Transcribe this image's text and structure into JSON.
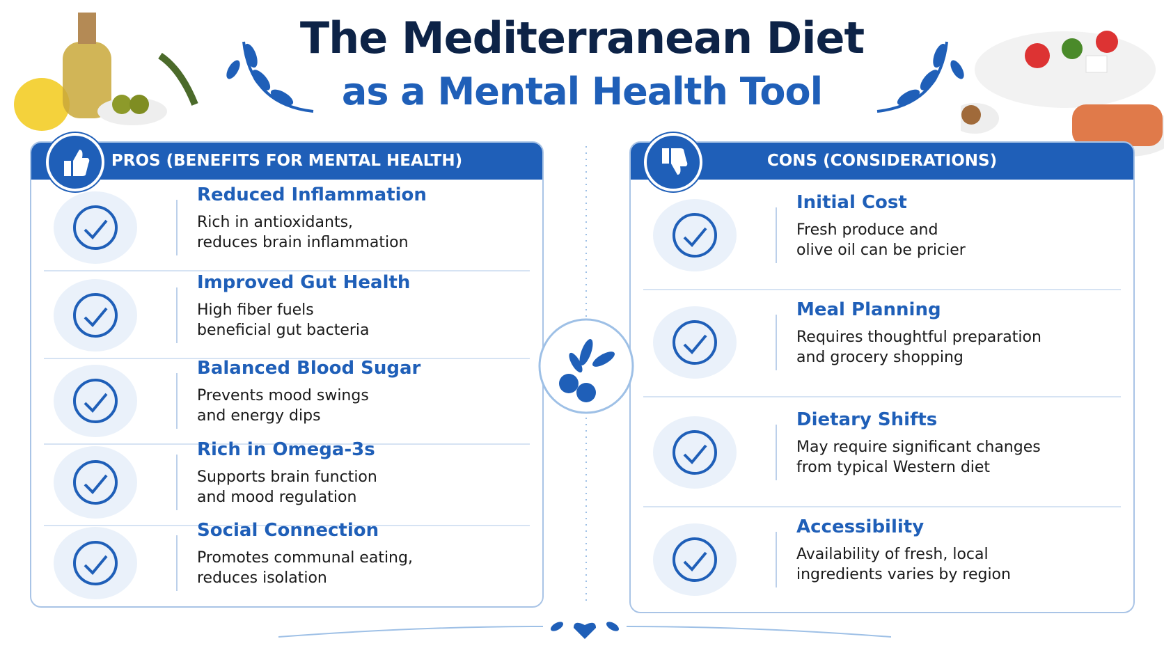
{
  "header": {
    "title_line1": "The Mediterranean Diet",
    "title_line2": "as a Mental Health Tool"
  },
  "pros": {
    "heading": "PROS (BENEFITS FOR MENTAL HEALTH)",
    "items": [
      {
        "title": "Reduced Inflammation",
        "lines": [
          "Rich in antioxidants,",
          "reduces brain inflammation"
        ]
      },
      {
        "title": "Improved Gut Health",
        "lines": [
          "High fiber fuels",
          "beneficial gut bacteria"
        ]
      },
      {
        "title": "Balanced Blood Sugar",
        "lines": [
          "Prevents mood swings",
          "and energy dips"
        ]
      },
      {
        "title": "Rich in Omega-3s",
        "lines": [
          "Supports brain function",
          "and mood regulation"
        ]
      },
      {
        "title": "Social Connection",
        "lines": [
          "Promotes communal eating,",
          "reduces isolation"
        ]
      }
    ]
  },
  "cons": {
    "heading": "CONS (CONSIDERATIONS)",
    "items": [
      {
        "title": "Initial Cost",
        "lines": [
          "Fresh produce and",
          "olive oil can be pricier"
        ]
      },
      {
        "title": "Meal Planning",
        "lines": [
          "Requires thoughtful preparation",
          "and grocery shopping"
        ]
      },
      {
        "title": "Dietary Shifts",
        "lines": [
          "May require significant changes",
          "from typical Western diet"
        ]
      },
      {
        "title": "Accessibility",
        "lines": [
          "Availability of fresh, local",
          "ingredients varies by region"
        ]
      }
    ]
  }
}
